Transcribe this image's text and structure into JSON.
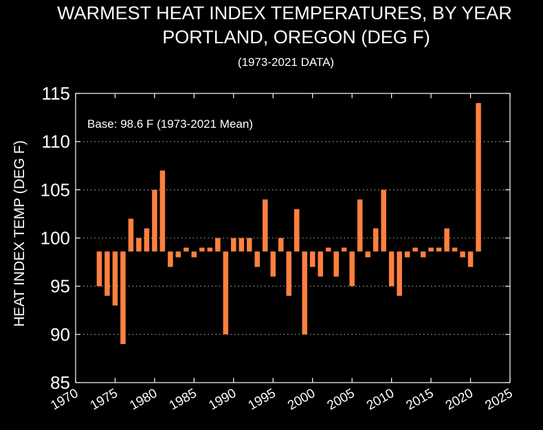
{
  "chart_data": {
    "type": "bar",
    "title": "WARMEST HEAT INDEX TEMPERATURES, BY YEAR",
    "title_line2": "PORTLAND, OREGON (DEG F)",
    "subtitle": "(1973-2021 DATA)",
    "xlabel": "",
    "ylabel": "HEAT INDEX TEMP (DEG F)",
    "annotation": "Base: 98.6 F (1973-2021 Mean)",
    "baseline": 98.6,
    "xlim": [
      1970,
      2025
    ],
    "ylim": [
      85,
      115
    ],
    "xticks": [
      "1970",
      "1975",
      "1980",
      "1985",
      "1990",
      "1995",
      "2000",
      "2005",
      "2010",
      "2015",
      "2020",
      "2025"
    ],
    "yticks": [
      "85",
      "90",
      "95",
      "100",
      "105",
      "110",
      "115"
    ],
    "grid": "y-dotted",
    "bar_color": "#ff8040",
    "axis_color": "#ffffff",
    "background": "#000000",
    "x": [
      1973,
      1974,
      1975,
      1976,
      1977,
      1978,
      1979,
      1980,
      1981,
      1982,
      1983,
      1984,
      1985,
      1986,
      1987,
      1988,
      1989,
      1990,
      1991,
      1992,
      1993,
      1994,
      1995,
      1996,
      1997,
      1998,
      1999,
      2000,
      2001,
      2002,
      2003,
      2004,
      2005,
      2006,
      2007,
      2008,
      2009,
      2010,
      2011,
      2012,
      2013,
      2014,
      2015,
      2016,
      2017,
      2018,
      2019,
      2020,
      2021
    ],
    "values": [
      95,
      94,
      93,
      89,
      102,
      100,
      101,
      105,
      107,
      97,
      98,
      99,
      98,
      99,
      99,
      100,
      90,
      100,
      100,
      100,
      97,
      104,
      96,
      100,
      94,
      103,
      90,
      97,
      96,
      99,
      96,
      99,
      95,
      104,
      98,
      101,
      105,
      95,
      94,
      98,
      99,
      98,
      99,
      99,
      101,
      99,
      98,
      97,
      114
    ]
  }
}
